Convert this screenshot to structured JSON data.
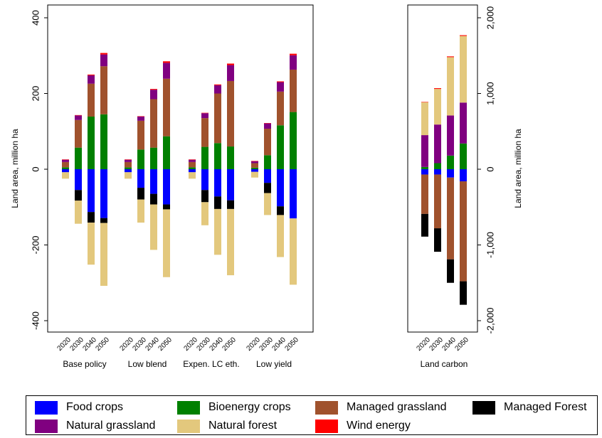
{
  "chart_data": [
    {
      "type": "bar",
      "stacked": true,
      "ylabel": "Land area, million ha",
      "ylim": [
        -440,
        430
      ],
      "yticks": [
        400,
        200,
        0,
        -200,
        -400
      ],
      "ytick_labels": [
        "400",
        "200",
        "0",
        "-200",
        "-400"
      ],
      "grid": false,
      "groups": [
        "Base policy",
        "Low blend",
        "Expen. LC eth.",
        "Low yield"
      ],
      "years": [
        "2020",
        "2030",
        "2040",
        "2050"
      ],
      "positive_series": [
        "Bioenergy crops",
        "Managed grassland",
        "Natural grassland",
        "Wind energy"
      ],
      "negative_series": [
        "Food crops",
        "Managed Forest",
        "Natural forest"
      ],
      "bars": [
        {
          "group": "Base policy",
          "year": "2020",
          "Bioenergy crops": 5,
          "Managed grassland": 14,
          "Natural grassland": 6,
          "Wind energy": 1,
          "Food crops": -8,
          "Managed Forest": 0,
          "Natural forest": -17
        },
        {
          "group": "Base policy",
          "year": "2030",
          "Bioenergy crops": 57,
          "Managed grassland": 73,
          "Natural grassland": 12,
          "Wind energy": 1,
          "Food crops": -55,
          "Managed Forest": -28,
          "Natural forest": -61
        },
        {
          "group": "Base policy",
          "year": "2040",
          "Bioenergy crops": 139,
          "Managed grassland": 87,
          "Natural grassland": 22,
          "Wind energy": 2,
          "Food crops": -113,
          "Managed Forest": -28,
          "Natural forest": -111
        },
        {
          "group": "Base policy",
          "year": "2050",
          "Bioenergy crops": 145,
          "Managed grassland": 127,
          "Natural grassland": 31,
          "Wind energy": 4,
          "Food crops": -129,
          "Managed Forest": -13,
          "Natural forest": -166
        },
        {
          "group": "Low blend",
          "year": "2020",
          "Bioenergy crops": 5,
          "Managed grassland": 14,
          "Natural grassland": 6,
          "Wind energy": 1,
          "Food crops": -8,
          "Managed Forest": 0,
          "Natural forest": -17
        },
        {
          "group": "Low blend",
          "year": "2030",
          "Bioenergy crops": 52,
          "Managed grassland": 76,
          "Natural grassland": 11,
          "Wind energy": 1,
          "Food crops": -49,
          "Managed Forest": -31,
          "Natural forest": -61
        },
        {
          "group": "Low blend",
          "year": "2040",
          "Bioenergy crops": 57,
          "Managed grassland": 128,
          "Natural grassland": 25,
          "Wind energy": 2,
          "Food crops": -65,
          "Managed Forest": -28,
          "Natural forest": -120
        },
        {
          "group": "Low blend",
          "year": "2050",
          "Bioenergy crops": 87,
          "Managed grassland": 152,
          "Natural grassland": 42,
          "Wind energy": 4,
          "Food crops": -93,
          "Managed Forest": -13,
          "Natural forest": -179
        },
        {
          "group": "Expen. LC eth.",
          "year": "2020",
          "Bioenergy crops": 5,
          "Managed grassland": 14,
          "Natural grassland": 6,
          "Wind energy": 1,
          "Food crops": -8,
          "Managed Forest": 0,
          "Natural forest": -17
        },
        {
          "group": "Expen. LC eth.",
          "year": "2030",
          "Bioenergy crops": 59,
          "Managed grassland": 76,
          "Natural grassland": 13,
          "Wind energy": 1,
          "Food crops": -55,
          "Managed Forest": -32,
          "Natural forest": -61
        },
        {
          "group": "Expen. LC eth.",
          "year": "2040",
          "Bioenergy crops": 69,
          "Managed grassland": 131,
          "Natural grassland": 22,
          "Wind energy": 2,
          "Food crops": -72,
          "Managed Forest": -33,
          "Natural forest": -121
        },
        {
          "group": "Expen. LC eth.",
          "year": "2050",
          "Bioenergy crops": 60,
          "Managed grassland": 173,
          "Natural grassland": 42,
          "Wind energy": 4,
          "Food crops": -82,
          "Managed Forest": -23,
          "Natural forest": -175
        },
        {
          "group": "Low yield",
          "year": "2020",
          "Bioenergy crops": 4,
          "Managed grassland": 12,
          "Natural grassland": 5,
          "Wind energy": 1,
          "Food crops": -7,
          "Managed Forest": 0,
          "Natural forest": -15
        },
        {
          "group": "Low yield",
          "year": "2030",
          "Bioenergy crops": 37,
          "Managed grassland": 70,
          "Natural grassland": 14,
          "Wind energy": 1,
          "Food crops": -36,
          "Managed Forest": -27,
          "Natural forest": -58
        },
        {
          "group": "Low yield",
          "year": "2040",
          "Bioenergy crops": 116,
          "Managed grassland": 89,
          "Natural grassland": 25,
          "Wind energy": 2,
          "Food crops": -98,
          "Managed Forest": -23,
          "Natural forest": -111
        },
        {
          "group": "Low yield",
          "year": "2050",
          "Bioenergy crops": 151,
          "Managed grassland": 112,
          "Natural grassland": 38,
          "Wind energy": 4,
          "Food crops": -130,
          "Managed Forest": 0,
          "Natural forest": -175
        }
      ]
    },
    {
      "type": "bar",
      "stacked": true,
      "ylabel": "Land area, million ha",
      "ylim": [
        -2200,
        2150
      ],
      "yticks": [
        2000,
        1000,
        0,
        -1000,
        -2000
      ],
      "ytick_labels": [
        "2,000",
        "1,000",
        "0",
        "-1,000",
        "-2,000"
      ],
      "yaxis_position": "right",
      "grid": false,
      "groups": [
        "Land carbon"
      ],
      "years": [
        "2020",
        "2030",
        "2040",
        "2050"
      ],
      "positive_series": [
        "Bioenergy crops",
        "Managed grassland",
        "Natural grassland",
        "Natural forest",
        "Wind energy"
      ],
      "negative_series": [
        "Food crops",
        "Managed grassland",
        "Managed Forest"
      ],
      "bars": [
        {
          "group": "Land carbon",
          "year": "2020",
          "Bioenergy crops": 30,
          "Managed grassland": 0,
          "Natural grassland": 420,
          "Natural forest": 435,
          "Wind energy": 5,
          "Food crops": -70,
          "Managed grassland_neg": -520,
          "Managed Forest": -300
        },
        {
          "group": "Land carbon",
          "year": "2030",
          "Bioenergy crops": 80,
          "Managed grassland": 0,
          "Natural grassland": 510,
          "Natural forest": 470,
          "Wind energy": 10,
          "Food crops": -70,
          "Managed grassland_neg": -710,
          "Managed Forest": -310
        },
        {
          "group": "Land carbon",
          "year": "2040",
          "Bioenergy crops": 180,
          "Managed grassland": 0,
          "Natural grassland": 530,
          "Natural forest": 770,
          "Wind energy": 10,
          "Food crops": -110,
          "Managed grassland_neg": -1080,
          "Managed Forest": -310
        },
        {
          "group": "Land carbon",
          "year": "2050",
          "Bioenergy crops": 340,
          "Managed grassland": 0,
          "Natural grassland": 540,
          "Natural forest": 880,
          "Wind energy": 10,
          "Food crops": -160,
          "Managed grassland_neg": -1320,
          "Managed Forest": -310
        }
      ]
    }
  ],
  "legend": {
    "placement": "bottom",
    "items": [
      {
        "label": "Food crops",
        "color": "#0000ff"
      },
      {
        "label": "Bioenergy crops",
        "color": "#008000"
      },
      {
        "label": "Managed grassland",
        "color": "#a0522d"
      },
      {
        "label": "Managed Forest",
        "color": "#000000"
      },
      {
        "label": "Natural grassland",
        "color": "#800080"
      },
      {
        "label": "Natural forest",
        "color": "#e3c87d"
      },
      {
        "label": "Wind energy",
        "color": "#ff0000"
      }
    ]
  }
}
